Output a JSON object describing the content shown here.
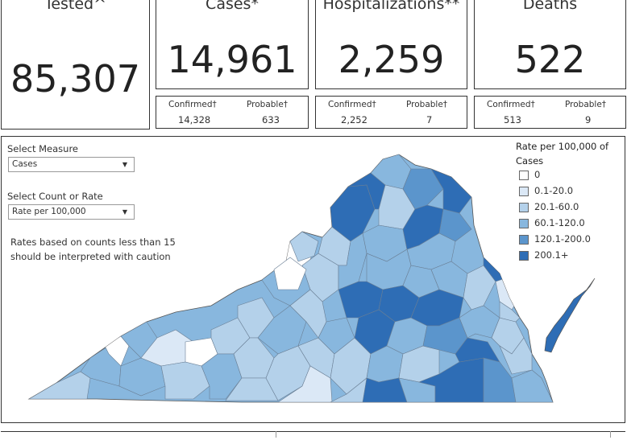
{
  "cards": [
    {
      "title": "Tested^",
      "value": "85,307"
    },
    {
      "title": "Cases*",
      "value": "14,961"
    },
    {
      "title": "Hospitalizations**",
      "value": "2,259"
    },
    {
      "title": "Deaths",
      "value": "522"
    }
  ],
  "breakdowns": [
    {
      "confirmed_label": "Confirmed†",
      "confirmed_value": "14,328",
      "probable_label": "Probable†",
      "probable_value": "633"
    },
    {
      "confirmed_label": "Confirmed†",
      "confirmed_value": "2,252",
      "probable_label": "Probable†",
      "probable_value": "7"
    },
    {
      "confirmed_label": "Confirmed†",
      "confirmed_value": "513",
      "probable_label": "Probable†",
      "probable_value": "9"
    }
  ],
  "controls": {
    "measure_label": "Select Measure",
    "measure_value": "Cases",
    "count_rate_label": "Select Count or Rate",
    "count_rate_value": "Rate per 100,000"
  },
  "note": "Rates based on counts less than 15 should be interpreted with caution",
  "legend": {
    "title": "Rate per 100,000 of Cases",
    "items": [
      {
        "label": "0",
        "color": "#ffffff"
      },
      {
        "label": "0.1-20.0",
        "color": "#dbe8f6"
      },
      {
        "label": "20.1-60.0",
        "color": "#b4d1ea"
      },
      {
        "label": "60.1-120.0",
        "color": "#88b7de"
      },
      {
        "label": "120.1-200.0",
        "color": "#5b95cc"
      },
      {
        "label": "200.1+",
        "color": "#2e6db5"
      }
    ]
  },
  "map": {
    "icon": "virginia-county-map"
  }
}
